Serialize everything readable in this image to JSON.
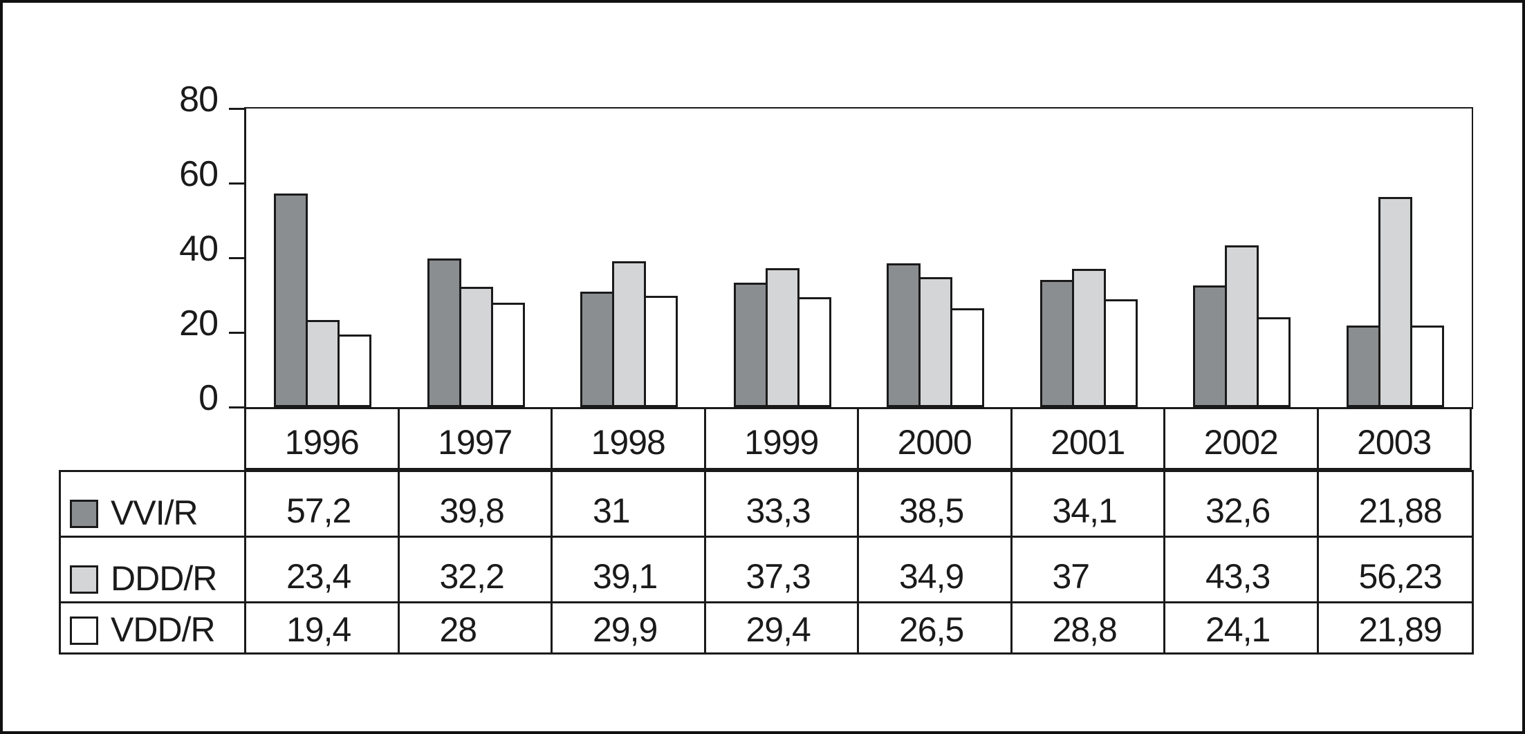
{
  "chart_data": {
    "type": "bar",
    "title": "",
    "xlabel": "",
    "ylabel": "",
    "categories": [
      "1996",
      "1997",
      "1998",
      "1999",
      "2000",
      "2001",
      "2002",
      "2003"
    ],
    "series": [
      {
        "name": "VVI/R",
        "color": "#8b8e91",
        "values": [
          57.2,
          39.8,
          31,
          33.3,
          38.5,
          34.1,
          32.6,
          21.88
        ]
      },
      {
        "name": "DDD/R",
        "color": "#d4d5d7",
        "values": [
          23.4,
          32.2,
          39.1,
          37.3,
          34.9,
          37,
          43.3,
          56.23
        ]
      },
      {
        "name": "VDD/R",
        "color": "#ffffff",
        "values": [
          19.4,
          28,
          29.9,
          29.4,
          26.5,
          28.8,
          24.1,
          21.89
        ]
      }
    ],
    "ylim": [
      0,
      80
    ],
    "yticks": [
      0,
      20,
      40,
      60,
      80
    ],
    "grid": false,
    "bar_outline_color": "#1a1a1a",
    "legend_position": "table-left-column",
    "value_labels_display": "table-below-axis",
    "decimal_separator": ","
  }
}
